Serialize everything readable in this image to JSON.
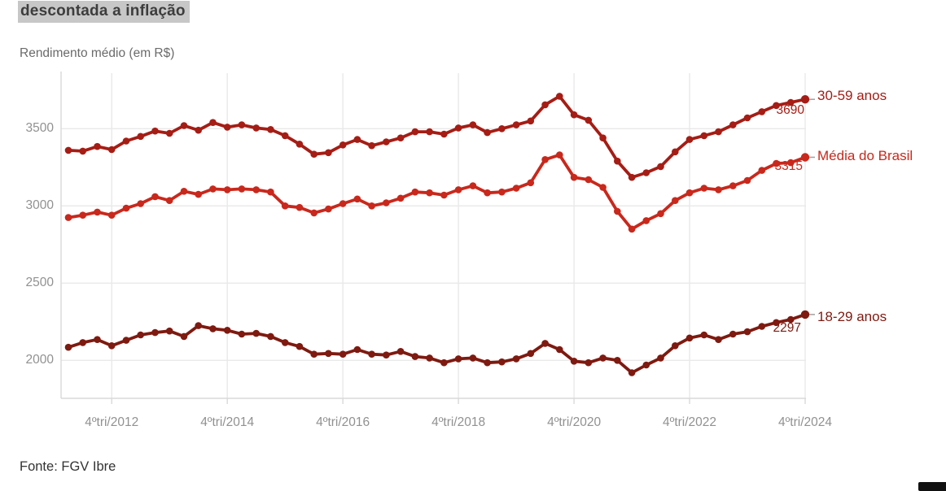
{
  "headline": "descontada a inflação",
  "footer": "Fonte: FGV Ibre",
  "colors": {
    "headline_highlight": "#c7c7c7",
    "grid": "#e9e9e9",
    "axis": "#d9d9d9",
    "tick_text": "#919191",
    "connector": "#a0a0a0"
  },
  "chart_data": {
    "type": "line",
    "title": "Rendimento médio (em R$)",
    "xlabel": "",
    "ylabel": "Rendimento médio (em R$)",
    "ylim": [
      1750,
      3860
    ],
    "y_ticks": [
      2000,
      2500,
      3000,
      3500
    ],
    "grid": true,
    "legend_position": "right-end-labels",
    "x_tick_labels": [
      "4ºtri/2012",
      "4ºtri/2014",
      "4ºtri/2016",
      "4ºtri/2018",
      "4ºtri/2020",
      "4ºtri/2022",
      "4ºtri/2024"
    ],
    "x_tick_indices": [
      3,
      11,
      19,
      27,
      35,
      43,
      51
    ],
    "categories": [
      "1ºtri/2012",
      "2ºtri/2012",
      "3ºtri/2012",
      "4ºtri/2012",
      "1ºtri/2013",
      "2ºtri/2013",
      "3ºtri/2013",
      "4ºtri/2013",
      "1ºtri/2014",
      "2ºtri/2014",
      "3ºtri/2014",
      "4ºtri/2014",
      "1ºtri/2015",
      "2ºtri/2015",
      "3ºtri/2015",
      "4ºtri/2015",
      "1ºtri/2016",
      "2ºtri/2016",
      "3ºtri/2016",
      "4ºtri/2016",
      "1ºtri/2017",
      "2ºtri/2017",
      "3ºtri/2017",
      "4ºtri/2017",
      "1ºtri/2018",
      "2ºtri/2018",
      "3ºtri/2018",
      "4ºtri/2018",
      "1ºtri/2019",
      "2ºtri/2019",
      "3ºtri/2019",
      "4ºtri/2019",
      "1ºtri/2020",
      "2ºtri/2020",
      "3ºtri/2020",
      "4ºtri/2020",
      "1ºtri/2021",
      "2ºtri/2021",
      "3ºtri/2021",
      "4ºtri/2021",
      "1ºtri/2022",
      "2ºtri/2022",
      "3ºtri/2022",
      "4ºtri/2022",
      "1ºtri/2023",
      "2ºtri/2023",
      "3ºtri/2023",
      "4ºtri/2023",
      "1ºtri/2024",
      "2ºtri/2024",
      "3ºtri/2024",
      "4ºtri/2024"
    ],
    "series": [
      {
        "name": "30-59 anos",
        "color": "#a51d15",
        "end_label": "3690",
        "values": [
          3360,
          3355,
          3385,
          3365,
          3420,
          3450,
          3485,
          3470,
          3520,
          3490,
          3540,
          3510,
          3525,
          3505,
          3495,
          3455,
          3400,
          3335,
          3345,
          3395,
          3430,
          3390,
          3415,
          3440,
          3480,
          3480,
          3465,
          3505,
          3525,
          3475,
          3500,
          3525,
          3550,
          3655,
          3710,
          3590,
          3555,
          3440,
          3290,
          3185,
          3215,
          3255,
          3350,
          3430,
          3455,
          3480,
          3525,
          3570,
          3610,
          3650,
          3670,
          3690
        ]
      },
      {
        "name": "Média do Brasil",
        "color": "#c9281c",
        "end_label": "3315",
        "values": [
          2925,
          2940,
          2960,
          2940,
          2985,
          3015,
          3060,
          3035,
          3095,
          3075,
          3110,
          3105,
          3110,
          3105,
          3090,
          3000,
          2990,
          2955,
          2980,
          3015,
          3045,
          3000,
          3020,
          3050,
          3090,
          3085,
          3070,
          3105,
          3130,
          3085,
          3090,
          3115,
          3150,
          3300,
          3330,
          3185,
          3170,
          3120,
          2965,
          2850,
          2905,
          2950,
          3035,
          3085,
          3115,
          3105,
          3130,
          3165,
          3230,
          3275,
          3280,
          3315
        ]
      },
      {
        "name": "18-29 anos",
        "color": "#7e1a10",
        "end_label": "2297",
        "values": [
          2085,
          2115,
          2135,
          2095,
          2130,
          2165,
          2180,
          2190,
          2155,
          2225,
          2205,
          2195,
          2170,
          2175,
          2155,
          2115,
          2090,
          2040,
          2045,
          2040,
          2070,
          2040,
          2035,
          2058,
          2025,
          2015,
          1985,
          2010,
          2015,
          1985,
          1990,
          2010,
          2045,
          2110,
          2070,
          1995,
          1985,
          2015,
          2000,
          1920,
          1970,
          2015,
          2095,
          2145,
          2165,
          2135,
          2170,
          2185,
          2220,
          2245,
          2265,
          2297
        ]
      }
    ]
  }
}
